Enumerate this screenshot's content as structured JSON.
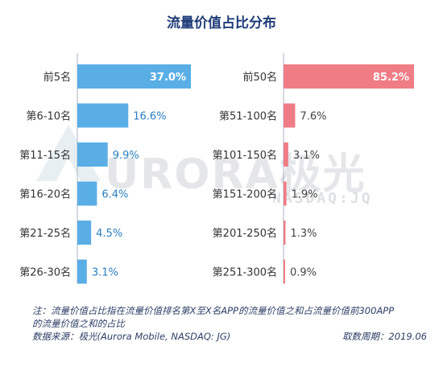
{
  "title": "流量价值占比分布",
  "watermark": {
    "brand": "URORA极光",
    "sub": "NASDAQ:JQ"
  },
  "colors": {
    "left": "#5aaee6",
    "right": "#f07c85",
    "axis": "#a9b3c4",
    "label": "#333333",
    "leftValue": "#2a7fc0",
    "rightValue": "#444444"
  },
  "chart_data": [
    {
      "type": "bar",
      "orientation": "horizontal",
      "categories": [
        "前5名",
        "第6-10名",
        "第11-15名",
        "第16-20名",
        "第21-25名",
        "第26-30名"
      ],
      "values": [
        37.0,
        16.6,
        9.9,
        6.4,
        4.5,
        3.1
      ],
      "value_labels": [
        "37.0%",
        "16.6%",
        "9.9%",
        "6.4%",
        "4.5%",
        "3.1%"
      ]
    },
    {
      "type": "bar",
      "orientation": "horizontal",
      "categories": [
        "前50名",
        "第51-100名",
        "第101-150名",
        "第151-200名",
        "第201-250名",
        "第251-300名"
      ],
      "values": [
        85.2,
        7.6,
        3.1,
        1.9,
        1.3,
        0.9
      ],
      "value_labels": [
        "85.2%",
        "7.6%",
        "3.1%",
        "1.9%",
        "1.3%",
        "0.9%"
      ]
    }
  ],
  "footer": {
    "note_line1": "注：流量价值占比指在流量价值排名第X至X名APP的流量价值之和占流量价值前300APP",
    "note_line2": "的流量价值之和的占比",
    "source": "数据来源：极光(Aurora Mobile, NASDAQ: JG)",
    "period": "取数周期：2019.06"
  }
}
